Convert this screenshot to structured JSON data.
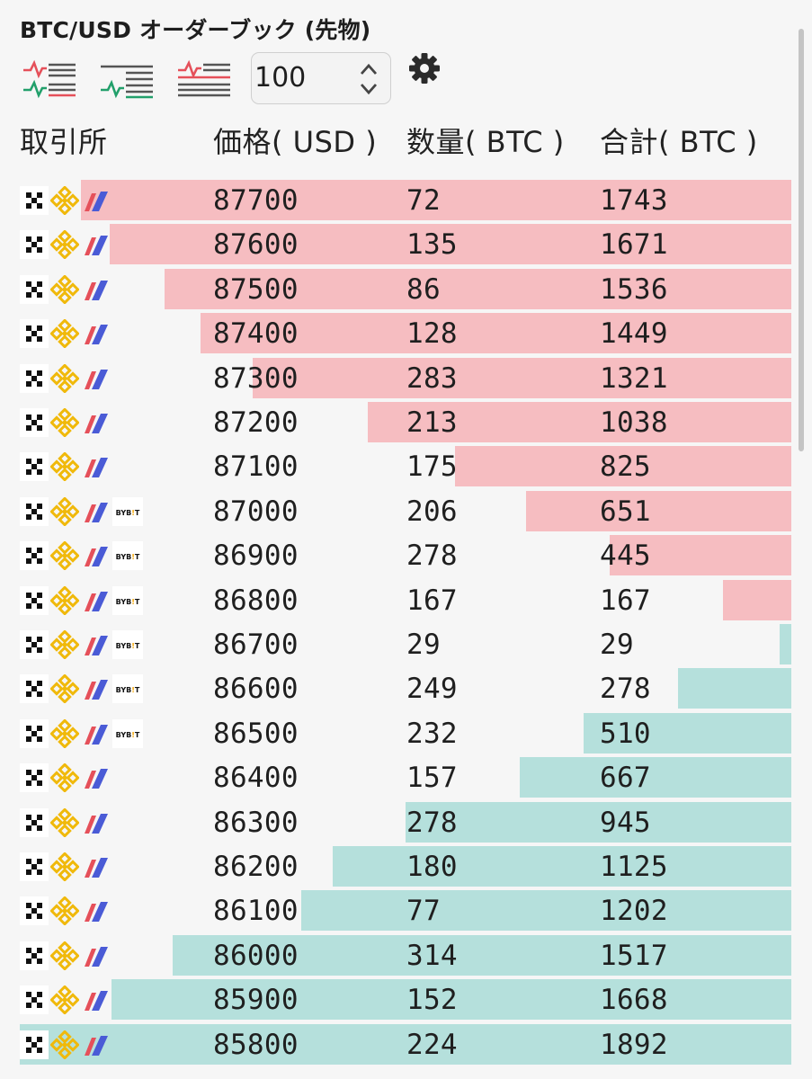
{
  "title": "BTC/USD オーダーブック (先物)",
  "toolbar": {
    "views": [
      "both-view-icon",
      "bids-view-icon",
      "asks-view-icon"
    ],
    "stepper_value": "100"
  },
  "columns": {
    "exchange": "取引所",
    "price": "価格( USD )",
    "qty": "数量( BTC )",
    "total": "合計( BTC )"
  },
  "colors": {
    "ask": "#f6bdc1",
    "bid": "#b5e0dc",
    "binance": "#f0b90b",
    "bitfinex_red": "#e5505a",
    "bitfinex_blue": "#4a5bd6"
  },
  "max_total": 1892,
  "rows": [
    {
      "side": "ask",
      "price": "87700",
      "qty": "72",
      "total": "1743",
      "depth": 1743,
      "bybit": false
    },
    {
      "side": "ask",
      "price": "87600",
      "qty": "135",
      "total": "1671",
      "depth": 1671,
      "bybit": false
    },
    {
      "side": "ask",
      "price": "87500",
      "qty": "86",
      "total": "1536",
      "depth": 1536,
      "bybit": false
    },
    {
      "side": "ask",
      "price": "87400",
      "qty": "128",
      "total": "1449",
      "depth": 1449,
      "bybit": false
    },
    {
      "side": "ask",
      "price": "87300",
      "qty": "283",
      "total": "1321",
      "depth": 1321,
      "bybit": false
    },
    {
      "side": "ask",
      "price": "87200",
      "qty": "213",
      "total": "1038",
      "depth": 1038,
      "bybit": false
    },
    {
      "side": "ask",
      "price": "87100",
      "qty": "175",
      "total": "825",
      "depth": 825,
      "bybit": false
    },
    {
      "side": "ask",
      "price": "87000",
      "qty": "206",
      "total": "651",
      "depth": 651,
      "bybit": true
    },
    {
      "side": "ask",
      "price": "86900",
      "qty": "278",
      "total": "445",
      "depth": 445,
      "bybit": true
    },
    {
      "side": "ask",
      "price": "86800",
      "qty": "167",
      "total": "167",
      "depth": 167,
      "bybit": true
    },
    {
      "side": "bid",
      "price": "86700",
      "qty": "29",
      "total": "29",
      "depth": 29,
      "bybit": true
    },
    {
      "side": "bid",
      "price": "86600",
      "qty": "249",
      "total": "278",
      "depth": 278,
      "bybit": true
    },
    {
      "side": "bid",
      "price": "86500",
      "qty": "232",
      "total": "510",
      "depth": 510,
      "bybit": true
    },
    {
      "side": "bid",
      "price": "86400",
      "qty": "157",
      "total": "667",
      "depth": 667,
      "bybit": false
    },
    {
      "side": "bid",
      "price": "86300",
      "qty": "278",
      "total": "945",
      "depth": 945,
      "bybit": false
    },
    {
      "side": "bid",
      "price": "86200",
      "qty": "180",
      "total": "1125",
      "depth": 1125,
      "bybit": false
    },
    {
      "side": "bid",
      "price": "86100",
      "qty": "77",
      "total": "1202",
      "depth": 1202,
      "bybit": false
    },
    {
      "side": "bid",
      "price": "86000",
      "qty": "314",
      "total": "1517",
      "depth": 1517,
      "bybit": false
    },
    {
      "side": "bid",
      "price": "85900",
      "qty": "152",
      "total": "1668",
      "depth": 1668,
      "bybit": false
    },
    {
      "side": "bid",
      "price": "85800",
      "qty": "224",
      "total": "1892",
      "depth": 1892,
      "bybit": false
    }
  ]
}
